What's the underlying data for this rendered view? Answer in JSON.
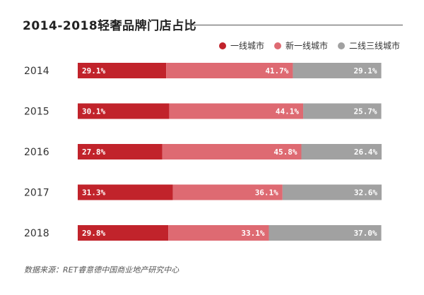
{
  "chart_data": {
    "type": "bar",
    "orientation": "horizontal",
    "stacked": true,
    "title": "2014-2018轻奢品牌门店占比",
    "categories": [
      "2014",
      "2015",
      "2016",
      "2017",
      "2018"
    ],
    "series": [
      {
        "name": "一线城市",
        "color": "#c1232b",
        "values": [
          29.1,
          30.1,
          27.8,
          31.3,
          29.8
        ],
        "labels": [
          "29.1%",
          "30.1%",
          "27.8%",
          "31.3%",
          "29.8%"
        ]
      },
      {
        "name": "新一线城市",
        "color": "#de6a72",
        "values": [
          41.7,
          44.1,
          45.8,
          36.1,
          33.1
        ],
        "labels": [
          "41.7%",
          "44.1%",
          "45.8%",
          "36.1%",
          "33.1%"
        ]
      },
      {
        "name": "二线三线城市",
        "color": "#a1a1a1",
        "values": [
          29.1,
          25.7,
          26.4,
          32.6,
          37.0
        ],
        "labels": [
          "29.1%",
          "25.7%",
          "26.4%",
          "32.6%",
          "37.0%"
        ]
      }
    ],
    "xlim": [
      0,
      100
    ],
    "legend_position": "top-right",
    "grid": false
  },
  "source_note": "数据来源：RET睿意德中国商业地产研究中心"
}
